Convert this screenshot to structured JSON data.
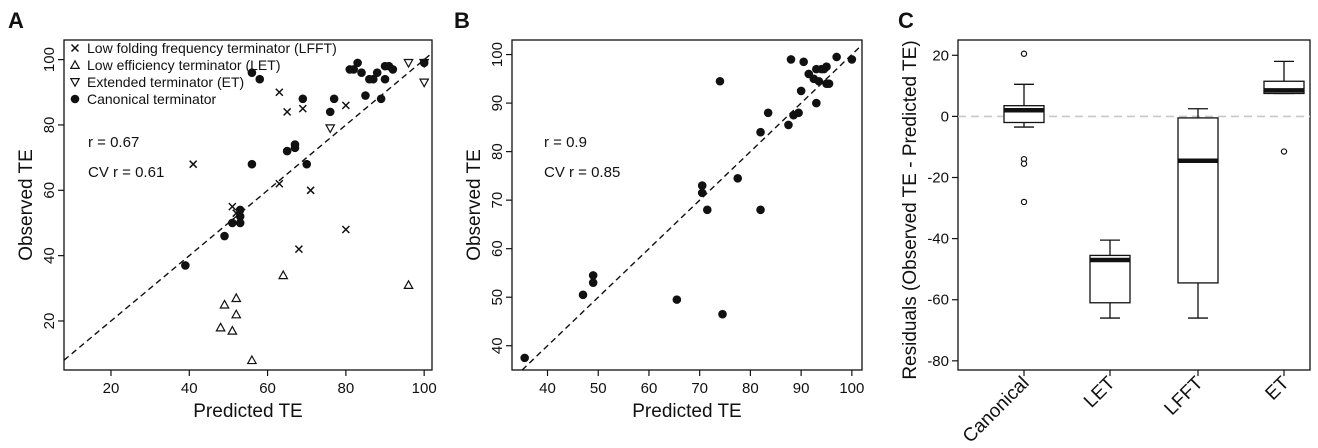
{
  "chart_data": [
    {
      "panel": "A",
      "type": "scatter",
      "xlabel": "Predicted TE",
      "ylabel": "Observed TE",
      "xlim": [
        8,
        102
      ],
      "ylim": [
        5,
        106
      ],
      "xticks": [
        20,
        40,
        60,
        80,
        100
      ],
      "yticks": [
        20,
        40,
        60,
        80,
        100
      ],
      "diagonal": true,
      "legend_position": "top-left",
      "annotations": [
        "r =  0.67",
        "CV r =  0.61"
      ],
      "series": [
        {
          "name": "Low folding frequency terminator (LFFT)",
          "marker": "x",
          "points": [
            [
              41,
              68
            ],
            [
              51,
              55
            ],
            [
              52,
              53
            ],
            [
              63,
              62
            ],
            [
              65,
              84
            ],
            [
              68,
              42
            ],
            [
              69,
              85
            ],
            [
              71,
              60
            ],
            [
              80,
              48
            ],
            [
              80,
              86
            ],
            [
              63,
              90
            ]
          ]
        },
        {
          "name": "Low efficiency terminator (LET)",
          "marker": "triangle-up",
          "points": [
            [
              48,
              18
            ],
            [
              49,
              25
            ],
            [
              51,
              17
            ],
            [
              52,
              22
            ],
            [
              52,
              27
            ],
            [
              56,
              8
            ],
            [
              64,
              34
            ],
            [
              96,
              31
            ]
          ]
        },
        {
          "name": "Extended terminator (ET)",
          "marker": "triangle-down",
          "points": [
            [
              76,
              79
            ],
            [
              96,
              99
            ],
            [
              100,
              93
            ],
            [
              100,
              99
            ]
          ]
        },
        {
          "name": "Canonical terminator",
          "marker": "circle",
          "points": [
            [
              39,
              37
            ],
            [
              49,
              46
            ],
            [
              51,
              50
            ],
            [
              53,
              50
            ],
            [
              53,
              52
            ],
            [
              53,
              54
            ],
            [
              56,
              68
            ],
            [
              56,
              96
            ],
            [
              58,
              94
            ],
            [
              65,
              72
            ],
            [
              67,
              73
            ],
            [
              67,
              74
            ],
            [
              69,
              88
            ],
            [
              70,
              68
            ],
            [
              76,
              84
            ],
            [
              77,
              88
            ],
            [
              81,
              97
            ],
            [
              82,
              97
            ],
            [
              83,
              99
            ],
            [
              84,
              96
            ],
            [
              85,
              89
            ],
            [
              86,
              94
            ],
            [
              87,
              94
            ],
            [
              88,
              96
            ],
            [
              89,
              88
            ],
            [
              90,
              94
            ],
            [
              90,
              98
            ],
            [
              91,
              98
            ],
            [
              92,
              97
            ],
            [
              100,
              99
            ]
          ]
        }
      ]
    },
    {
      "panel": "B",
      "type": "scatter",
      "xlabel": "Predicted TE",
      "ylabel": "Observed TE",
      "xlim": [
        33,
        102
      ],
      "ylim": [
        35,
        103
      ],
      "xticks": [
        40,
        50,
        60,
        70,
        80,
        90,
        100
      ],
      "yticks": [
        40,
        50,
        60,
        70,
        80,
        90,
        100
      ],
      "diagonal": true,
      "annotations": [
        "r =  0.9",
        "CV r =  0.85"
      ],
      "series": [
        {
          "marker": "circle",
          "points": [
            [
              35.5,
              37.5
            ],
            [
              47,
              50.5
            ],
            [
              49,
              53
            ],
            [
              49,
              54.5
            ],
            [
              65.5,
              49.5
            ],
            [
              70.5,
              71.5
            ],
            [
              70.5,
              73
            ],
            [
              71.5,
              68
            ],
            [
              74,
              94.5
            ],
            [
              74.5,
              46.5
            ],
            [
              77.5,
              74.5
            ],
            [
              82,
              84
            ],
            [
              82,
              68
            ],
            [
              83.5,
              88
            ],
            [
              87.5,
              85.5
            ],
            [
              88,
              99
            ],
            [
              88.5,
              87.5
            ],
            [
              89.5,
              88
            ],
            [
              90,
              92.5
            ],
            [
              90.5,
              98.5
            ],
            [
              91.5,
              96
            ],
            [
              92.5,
              95
            ],
            [
              93,
              90
            ],
            [
              93,
              97
            ],
            [
              93.5,
              94.5
            ],
            [
              94,
              97
            ],
            [
              94.5,
              97
            ],
            [
              95,
              94
            ],
            [
              95,
              97.5
            ],
            [
              95.5,
              94
            ],
            [
              97,
              99.5
            ],
            [
              100,
              99
            ]
          ]
        }
      ]
    },
    {
      "panel": "C",
      "type": "box",
      "ylabel": "Residuals (Observed TE - Predicted TE)",
      "ylim": [
        -83,
        25
      ],
      "yticks": [
        20,
        0,
        -20,
        -40,
        -60,
        -80
      ],
      "ytick_labels": [
        "20",
        "0",
        "-20",
        "-40",
        "-60",
        "-80"
      ],
      "zero_line": true,
      "categories": [
        "Canonical",
        "LET",
        "LFFT",
        "ET"
      ],
      "boxes": [
        {
          "whisker_low": -3.5,
          "q1": -2,
          "median": 2,
          "q3": 3.5,
          "whisker_high": 10.5,
          "outliers": [
            20.5,
            -14,
            -15.5,
            -28
          ]
        },
        {
          "whisker_low": -66,
          "q1": -61,
          "median": -47,
          "q3": -45.5,
          "whisker_high": -40.5,
          "outliers": []
        },
        {
          "whisker_low": -66,
          "q1": -54.5,
          "median": -14.5,
          "q3": -0.5,
          "whisker_high": 2.5,
          "outliers": []
        },
        {
          "whisker_low": 7.5,
          "q1": 7.5,
          "median": 8.5,
          "q3": 11.5,
          "whisker_high": 18,
          "outliers": [
            -11.5
          ]
        }
      ]
    }
  ]
}
